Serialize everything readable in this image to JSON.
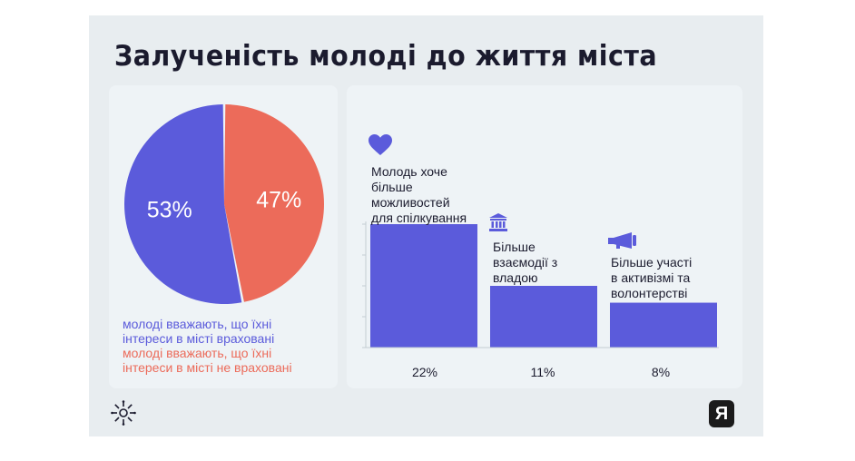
{
  "title": "Залученість молоді до життя міста",
  "colors": {
    "blue": "#5b5bdb",
    "red": "#ec6b5a",
    "dark": "#1b1b2e"
  },
  "chart_data": [
    {
      "type": "pie",
      "slices": [
        {
          "label": "молоді вважають, що їхні інтереси в місті враховані",
          "value": 53,
          "display": "53%",
          "color": "#5b5bdb"
        },
        {
          "label": "молоді вважають, що їхні інтереси в місті не враховані",
          "value": 47,
          "display": "47%",
          "color": "#ec6b5a"
        }
      ],
      "legend": [
        {
          "line1": "молоді вважають, що їхні",
          "line2": "інтереси в місті враховані",
          "color": "#5b5bdb"
        },
        {
          "line1": "молоді вважають, що їхні",
          "line2": "інтереси в місті не враховані",
          "color": "#ec6b5a"
        }
      ]
    },
    {
      "type": "bar",
      "categories": [
        {
          "lines": [
            "Молодь хоче",
            "більше",
            "можливостей",
            "для спілкування"
          ],
          "icon": "heart-icon"
        },
        {
          "lines": [
            "Більше",
            "взаємодії з",
            "владою"
          ],
          "icon": "government-building-icon"
        },
        {
          "lines": [
            "Більше участі",
            "в активізмі та",
            "волонтерстві"
          ],
          "icon": "megaphone-icon"
        }
      ],
      "values": [
        22,
        11,
        8
      ],
      "value_labels": [
        "22%",
        "11%",
        "8%"
      ],
      "ylim": [
        0,
        22
      ],
      "color": "#5b5bdb"
    }
  ],
  "footer": {
    "right_logo_text": "Я",
    "left_logo": "sun-logo-icon"
  }
}
